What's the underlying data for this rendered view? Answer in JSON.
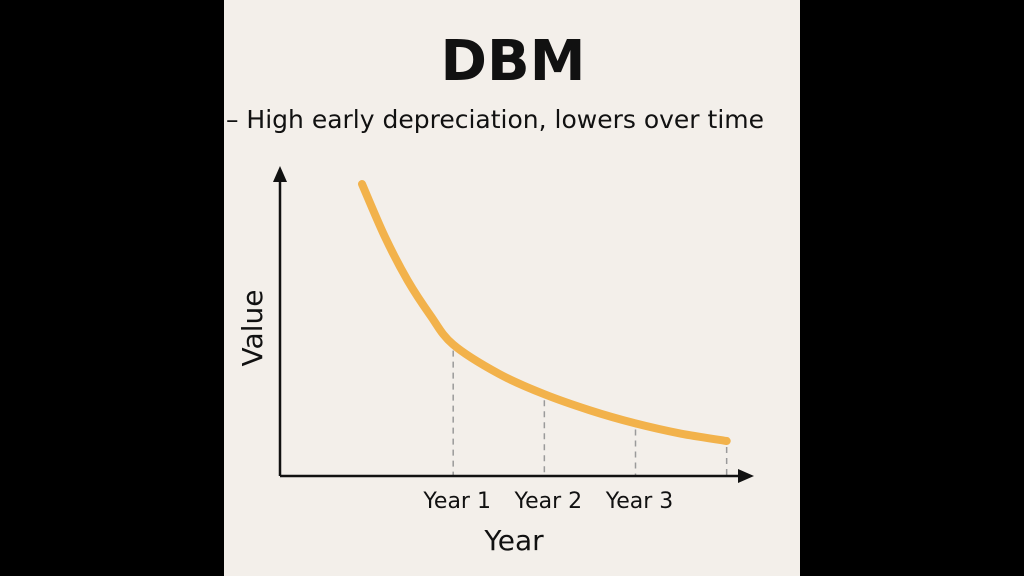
{
  "colors": {
    "outer_background": "#000000",
    "panel_background": "#f3efea",
    "curve": "#f2b24b",
    "axis": "#111111",
    "guide": "#9a9a9a"
  },
  "chart_data": {
    "type": "line",
    "title": "DBM",
    "subtitle": "– High early depreciation, lowers over time",
    "xlabel": "Year",
    "ylabel": "Value",
    "xtick_labels": [
      {
        "x": 1,
        "label": "Year 1"
      },
      {
        "x": 2,
        "label": "Year 2"
      },
      {
        "x": 3,
        "label": "Year 3"
      }
    ],
    "xlim": [
      -0.9,
      4.3
    ],
    "ylim": [
      0,
      100
    ],
    "grid": false,
    "guide_lines_at_x": [
      1,
      2,
      3,
      4
    ],
    "series": [
      {
        "x": [
          0,
          0.25,
          0.5,
          0.75,
          1,
          1.5,
          2,
          2.5,
          3,
          3.5,
          4
        ],
        "y": [
          100,
          82,
          67,
          55,
          45,
          35,
          28,
          22.5,
          18,
          14.5,
          12
        ]
      }
    ]
  }
}
